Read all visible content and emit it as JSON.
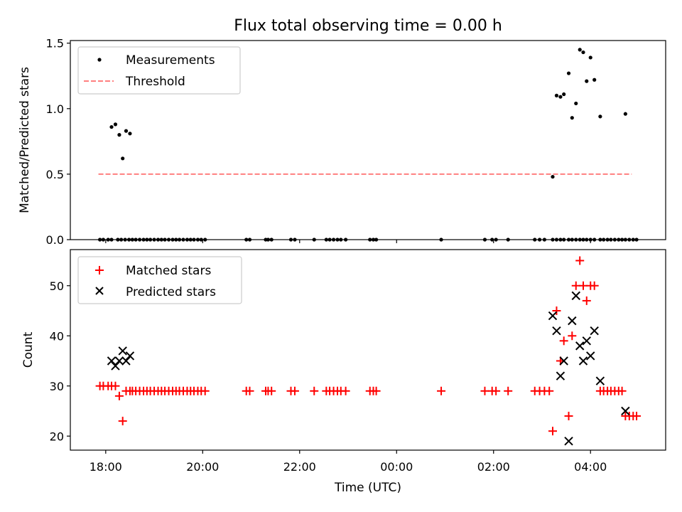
{
  "chart_data": [
    {
      "type": "scatter",
      "title": "Flux total observing time = 0.00 h",
      "ylabel": "Matched/Predicted stars",
      "xlabel": "",
      "xlim_hours": [
        17.27,
        29.55
      ],
      "ylim": [
        0,
        1.52
      ],
      "yticks": [
        0.0,
        0.5,
        1.0,
        1.5
      ],
      "ytick_labels": [
        "0.0",
        "0.5",
        "1.0",
        "1.5"
      ],
      "legend": {
        "placement": "top-left",
        "entries": [
          "Measurements",
          "Threshold"
        ]
      },
      "colors": {
        "measurements": "#000000",
        "threshold": "#ff7f7f"
      },
      "threshold": {
        "value": 0.5,
        "x_range_hours": [
          17.85,
          28.85
        ]
      },
      "series": [
        {
          "name": "Measurements",
          "x_hours": [
            17.88,
            17.95,
            18.05,
            18.12,
            18.25,
            18.32,
            18.4,
            18.48,
            18.55,
            18.62,
            18.7,
            18.78,
            18.85,
            18.92,
            19.0,
            19.08,
            19.15,
            19.22,
            19.3,
            19.38,
            19.45,
            19.52,
            19.6,
            19.68,
            19.75,
            19.82,
            19.9,
            19.97,
            20.05,
            20.9,
            20.97,
            21.3,
            21.35,
            21.42,
            21.82,
            21.9,
            22.3,
            22.55,
            22.62,
            22.7,
            22.78,
            22.85,
            22.95,
            23.45,
            23.52,
            23.58,
            24.92,
            25.82,
            25.97,
            26.05,
            26.3,
            26.85,
            26.95,
            27.05,
            27.22,
            27.3,
            27.38,
            27.45,
            27.55,
            27.62,
            27.7,
            27.78,
            27.85,
            27.92,
            28.0,
            28.08,
            28.2,
            28.27,
            28.35,
            28.42,
            28.5,
            28.58,
            28.65,
            28.72,
            28.8,
            28.88,
            28.95,
            18.12,
            18.2,
            18.28,
            18.35,
            18.42,
            18.5,
            27.22,
            27.3,
            27.38,
            27.45,
            27.55,
            27.62,
            27.7,
            27.78,
            27.85,
            27.92,
            28.0,
            28.08,
            28.2,
            28.72
          ],
          "y": [
            0,
            0,
            0,
            0,
            0,
            0,
            0,
            0,
            0,
            0,
            0,
            0,
            0,
            0,
            0,
            0,
            0,
            0,
            0,
            0,
            0,
            0,
            0,
            0,
            0,
            0,
            0,
            0,
            0,
            0,
            0,
            0,
            0,
            0,
            0,
            0,
            0,
            0,
            0,
            0,
            0,
            0,
            0,
            0,
            0,
            0,
            0,
            0,
            0,
            0,
            0,
            0,
            0,
            0,
            0,
            0,
            0,
            0,
            0,
            0,
            0,
            0,
            0,
            0,
            0,
            0,
            0,
            0,
            0,
            0,
            0,
            0,
            0,
            0,
            0,
            0,
            0,
            0.86,
            0.88,
            0.8,
            0.62,
            0.83,
            0.81,
            0.48,
            1.1,
            1.09,
            1.11,
            1.27,
            0.93,
            1.04,
            1.45,
            1.43,
            1.21,
            1.39,
            1.22,
            0.94,
            0.96
          ]
        }
      ]
    },
    {
      "type": "scatter",
      "title": "",
      "xlabel": "Time (UTC)",
      "ylabel": "Count",
      "xlim_hours": [
        17.27,
        29.55
      ],
      "ylim": [
        17.2,
        57.2
      ],
      "yticks": [
        20,
        30,
        40,
        50
      ],
      "ytick_labels": [
        "20",
        "30",
        "40",
        "50"
      ],
      "xticks_hours": [
        18,
        20,
        22,
        24,
        26,
        28
      ],
      "xtick_labels": [
        "18:00",
        "20:00",
        "22:00",
        "00:00",
        "02:00",
        "04:00"
      ],
      "legend": {
        "placement": "top-left",
        "entries": [
          "Matched stars",
          "Predicted stars"
        ]
      },
      "colors": {
        "matched": "#ff0000",
        "predicted": "#000000"
      },
      "series": [
        {
          "name": "Matched stars",
          "marker": "plus",
          "x_hours": [
            17.88,
            17.95,
            18.05,
            18.12,
            18.2,
            18.28,
            18.35,
            18.42,
            18.5,
            18.55,
            18.62,
            18.7,
            18.78,
            18.85,
            18.92,
            19.0,
            19.08,
            19.15,
            19.22,
            19.3,
            19.38,
            19.45,
            19.52,
            19.6,
            19.68,
            19.75,
            19.82,
            19.9,
            19.97,
            20.05,
            20.9,
            20.97,
            21.3,
            21.35,
            21.42,
            21.82,
            21.9,
            22.3,
            22.55,
            22.62,
            22.7,
            22.78,
            22.85,
            22.95,
            23.45,
            23.52,
            23.58,
            24.92,
            25.82,
            25.97,
            26.05,
            26.3,
            26.85,
            26.95,
            27.05,
            27.15,
            27.22,
            27.3,
            27.38,
            27.45,
            27.55,
            27.62,
            27.7,
            27.78,
            27.85,
            27.92,
            28.0,
            28.08,
            28.2,
            28.27,
            28.35,
            28.42,
            28.5,
            28.58,
            28.65,
            28.72,
            28.8,
            28.88,
            28.95
          ],
          "y": [
            30,
            30,
            30,
            30,
            30,
            28,
            23,
            29,
            29,
            29,
            29,
            29,
            29,
            29,
            29,
            29,
            29,
            29,
            29,
            29,
            29,
            29,
            29,
            29,
            29,
            29,
            29,
            29,
            29,
            29,
            29,
            29,
            29,
            29,
            29,
            29,
            29,
            29,
            29,
            29,
            29,
            29,
            29,
            29,
            29,
            29,
            29,
            29,
            29,
            29,
            29,
            29,
            29,
            29,
            29,
            29,
            21,
            45,
            35,
            39,
            24,
            40,
            50,
            55,
            50,
            47,
            50,
            50,
            29,
            29,
            29,
            29,
            29,
            29,
            29,
            24,
            24,
            24,
            24
          ]
        },
        {
          "name": "Predicted stars",
          "marker": "x",
          "x_hours": [
            18.12,
            18.2,
            18.28,
            18.35,
            18.42,
            18.5,
            27.22,
            27.3,
            27.38,
            27.45,
            27.55,
            27.62,
            27.7,
            27.78,
            27.85,
            27.92,
            28.0,
            28.08,
            28.2,
            28.72
          ],
          "y": [
            35,
            34,
            35,
            37,
            35,
            36,
            44,
            41,
            32,
            35,
            19,
            43,
            48,
            38,
            35,
            39,
            36,
            41,
            31,
            25
          ]
        }
      ]
    }
  ]
}
